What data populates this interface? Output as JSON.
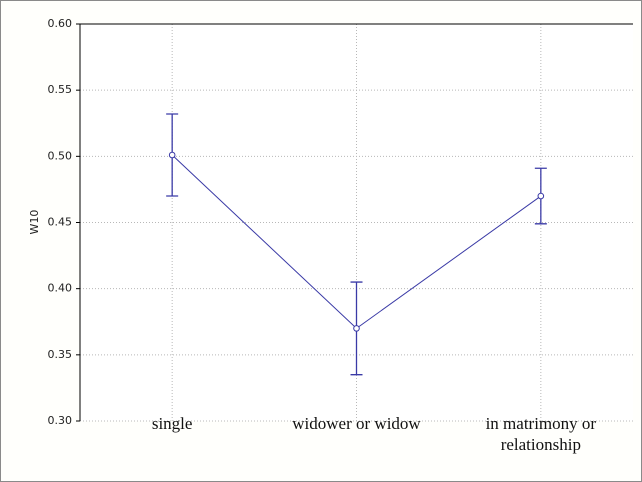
{
  "chart_data": {
    "type": "line",
    "y_label": "W10",
    "categories": [
      "single",
      "widower or widow",
      "in matrimony or relationship"
    ],
    "series": [
      {
        "color": "#3a3aa6",
        "values": [
          0.501,
          0.37,
          0.47
        ],
        "errors": [
          0.031,
          0.035,
          0.021
        ]
      }
    ],
    "ylim": [
      0.3,
      0.6
    ],
    "yticks": [
      {
        "value": 0.3,
        "label": "0.30"
      },
      {
        "value": 0.35,
        "label": "0.35"
      },
      {
        "value": 0.4,
        "label": "0.40"
      },
      {
        "value": 0.45,
        "label": "0.45"
      },
      {
        "value": 0.5,
        "label": "0.50"
      },
      {
        "value": 0.55,
        "label": "0.55"
      },
      {
        "value": 0.6,
        "label": "0.60"
      }
    ],
    "grid": true
  }
}
